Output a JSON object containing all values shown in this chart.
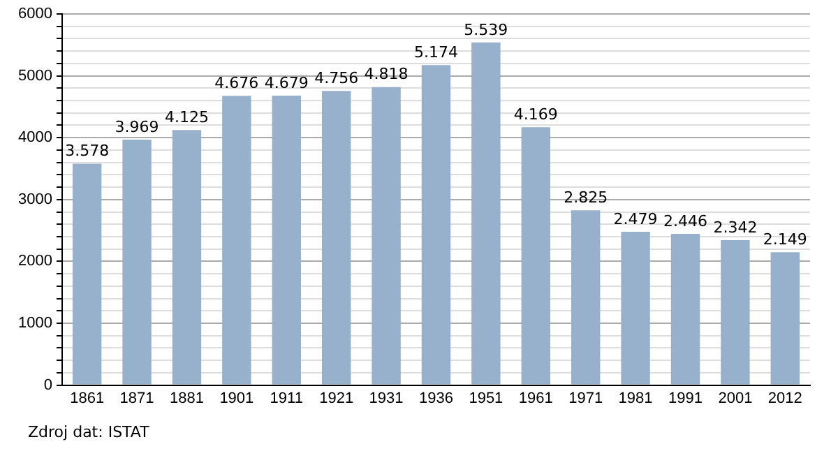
{
  "chart_data": {
    "type": "bar",
    "categories": [
      "1861",
      "1871",
      "1881",
      "1901",
      "1911",
      "1921",
      "1931",
      "1936",
      "1951",
      "1961",
      "1971",
      "1981",
      "1991",
      "2001",
      "2012"
    ],
    "values": [
      3578,
      3969,
      4125,
      4676,
      4679,
      4756,
      4818,
      5174,
      5539,
      4169,
      2825,
      2479,
      2446,
      2342,
      2149
    ],
    "value_labels": [
      "3.578",
      "3.969",
      "4.125",
      "4.676",
      "4.679",
      "4.756",
      "4.818",
      "5.174",
      "5.539",
      "4.169",
      "2.825",
      "2.479",
      "2.446",
      "2.342",
      "2.149"
    ],
    "color": "#97b1cc",
    "ylim": [
      0,
      6000
    ],
    "yticks": [
      0,
      {
        "value": 200,
        "label": null
      },
      {
        "value": 400,
        "label": null
      },
      {
        "value": 600,
        "label": null
      },
      {
        "value": 800,
        "label": null
      },
      1000,
      {
        "value": 1200,
        "label": null
      },
      {
        "value": 1400,
        "label": null
      },
      {
        "value": 1600,
        "label": null
      },
      {
        "value": 1800,
        "label": null
      },
      2000,
      {
        "value": 2200,
        "label": null
      },
      {
        "value": 2400,
        "label": null
      },
      {
        "value": 2600,
        "label": null
      },
      {
        "value": 2800,
        "label": null
      },
      3000,
      {
        "value": 3200,
        "label": null
      },
      {
        "value": 3400,
        "label": null
      },
      {
        "value": 3600,
        "label": null
      },
      {
        "value": 3800,
        "label": null
      },
      4000,
      {
        "value": 4200,
        "label": null
      },
      {
        "value": 4400,
        "label": null
      },
      {
        "value": 4600,
        "label": null
      },
      {
        "value": 4800,
        "label": null
      },
      5000,
      {
        "value": 5200,
        "label": null
      },
      {
        "value": 5400,
        "label": null
      },
      {
        "value": 5600,
        "label": null
      },
      {
        "value": 5800,
        "label": null
      },
      6000
    ],
    "grid": "y",
    "legend": false,
    "annotations": [
      "Zdroj dat: ISTAT"
    ]
  }
}
